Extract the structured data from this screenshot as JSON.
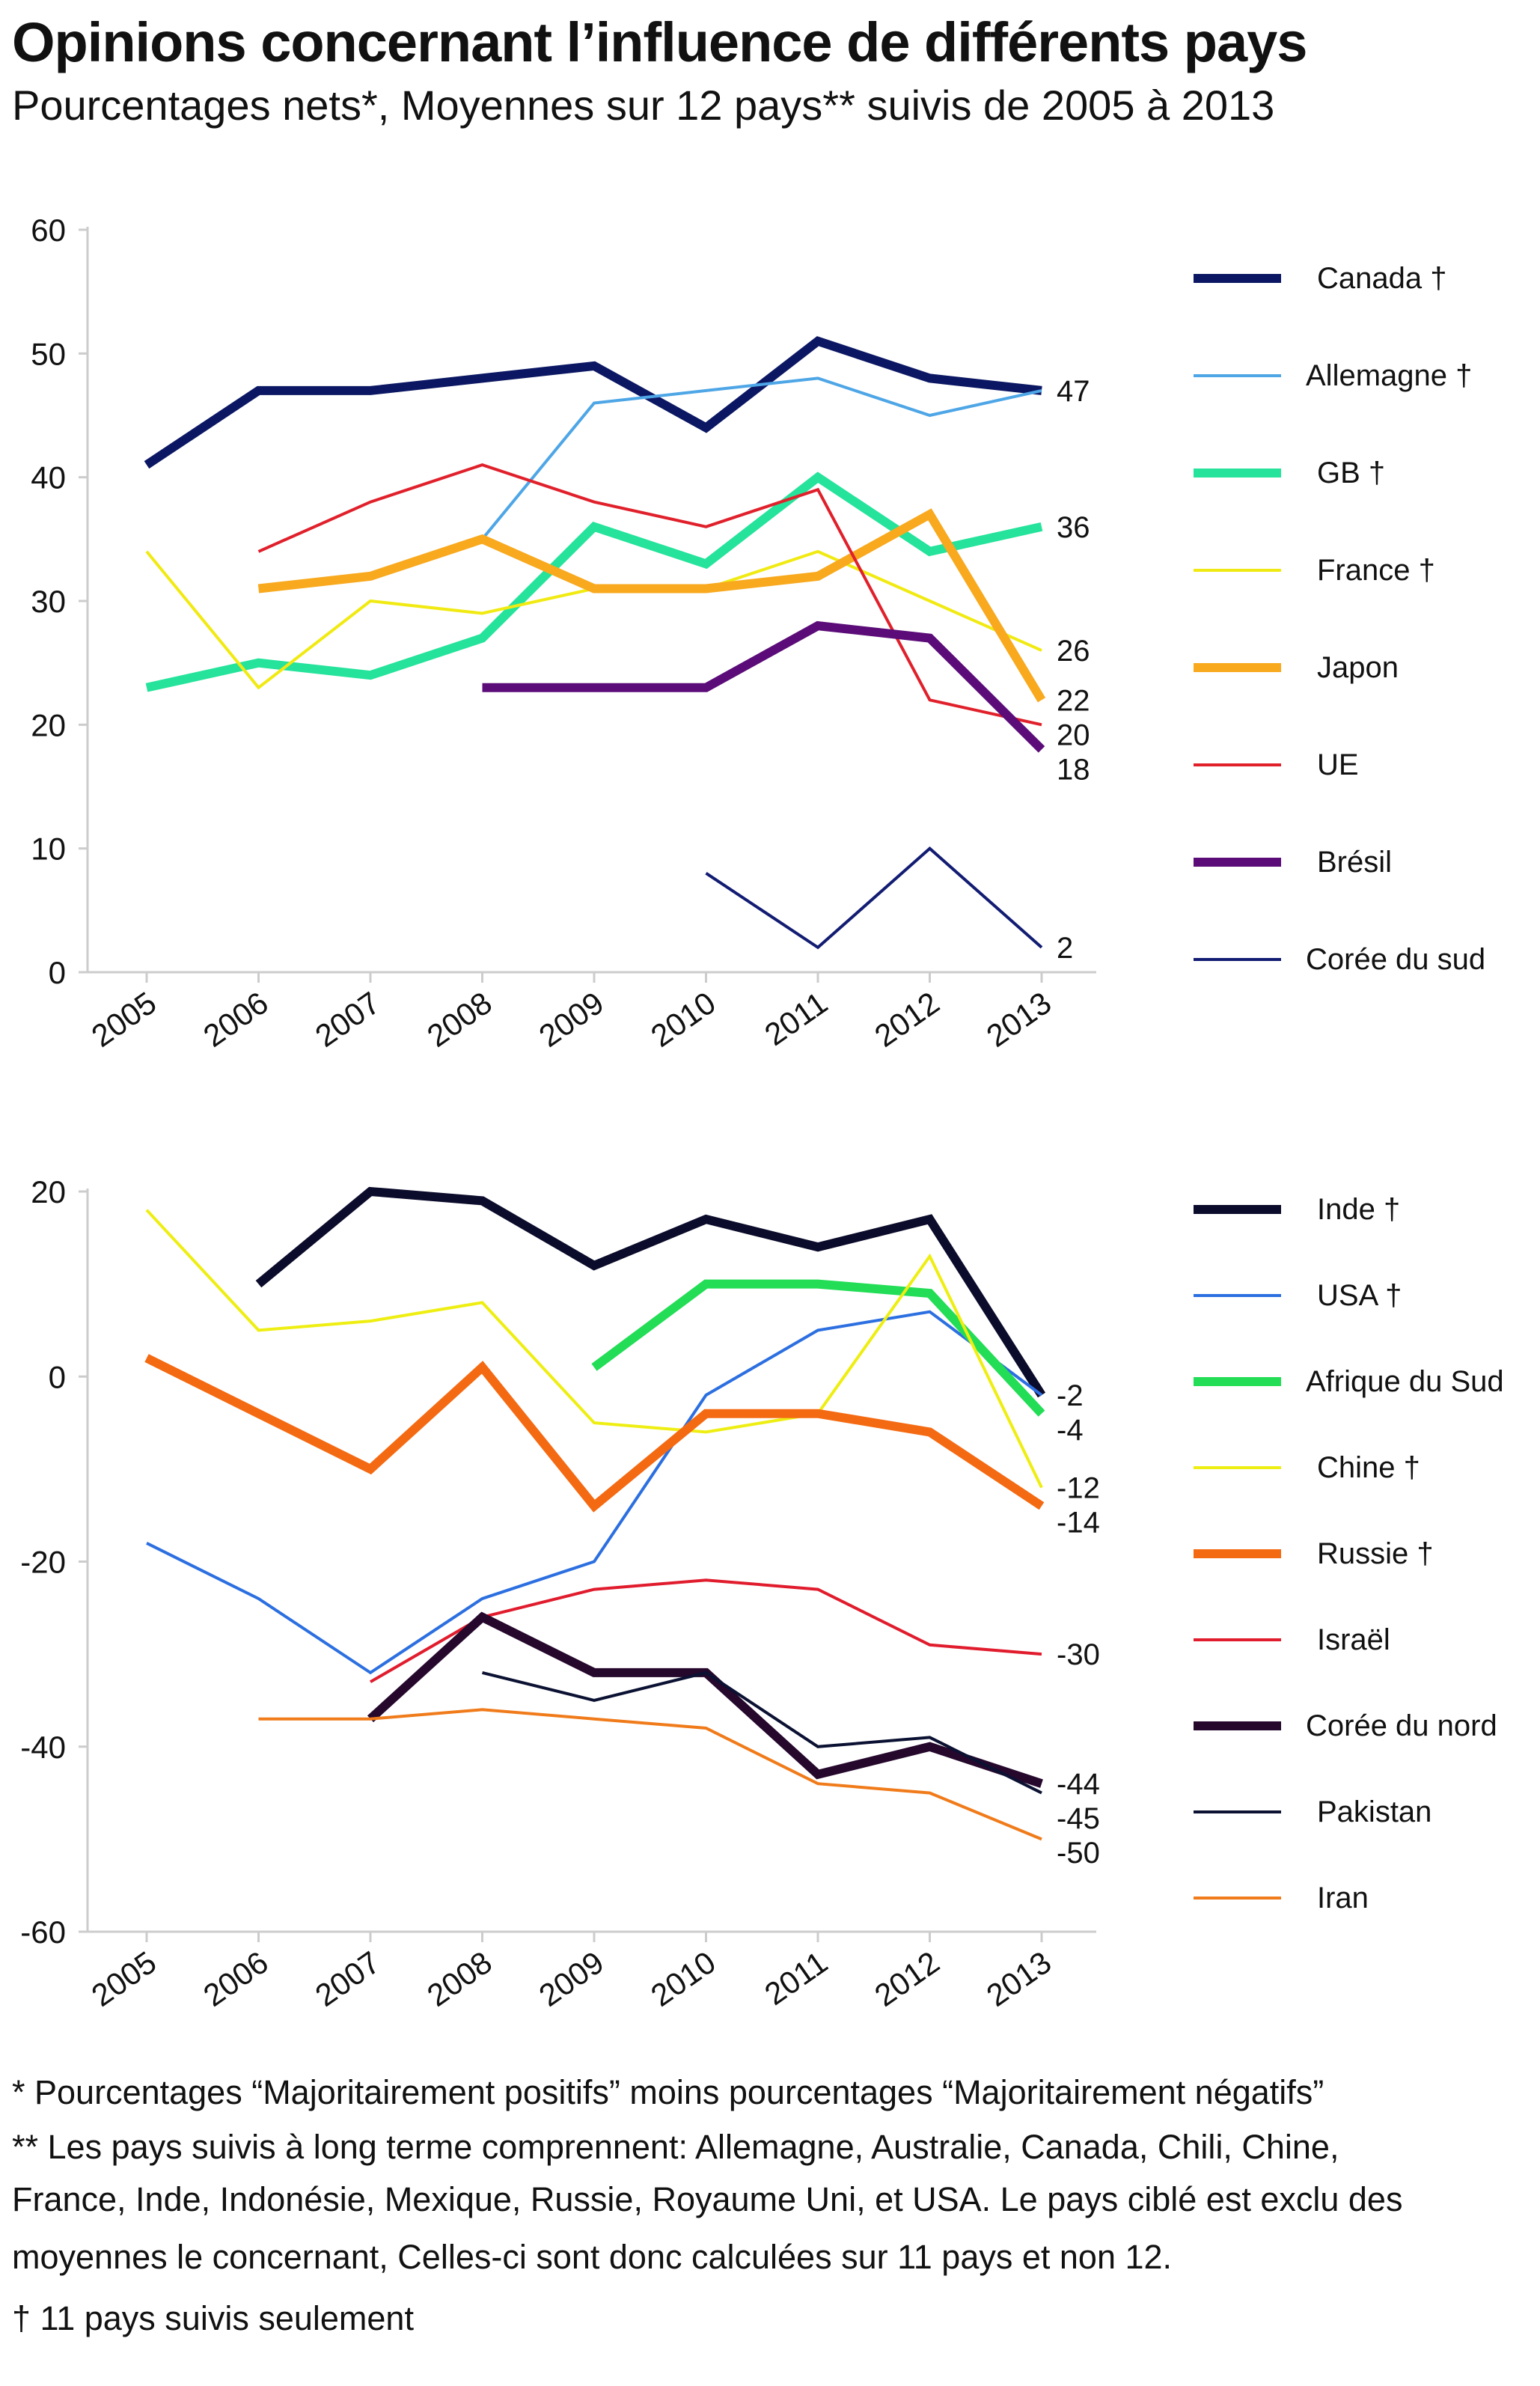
{
  "title": "Opinions concernant l’influence de différents pays",
  "subtitle": "Pourcentages nets*, Moyennes sur 12 pays** suivis de 2005 à 2013",
  "chart_data": [
    {
      "type": "line",
      "x": [
        2005,
        2006,
        2007,
        2008,
        2009,
        2010,
        2011,
        2012,
        2013
      ],
      "ylim": [
        0,
        60
      ],
      "yticks": [
        0,
        10,
        20,
        30,
        40,
        50,
        60
      ],
      "grid": false,
      "legend": "right",
      "series": [
        {
          "name": "Canada",
          "dagger": true,
          "color": "#0b1763",
          "thick": true,
          "values": [
            41,
            47,
            47,
            48,
            49,
            44,
            51,
            48,
            47
          ],
          "end_label": "47"
        },
        {
          "name": "Allemagne",
          "dagger": true,
          "color": "#4ea6e6",
          "thick": false,
          "values": [
            null,
            null,
            null,
            35,
            46,
            47,
            48,
            45,
            47
          ],
          "end_label": ""
        },
        {
          "name": "GB",
          "dagger": true,
          "color": "#25e39b",
          "thick": true,
          "values": [
            23,
            25,
            24,
            27,
            36,
            33,
            40,
            34,
            36
          ],
          "end_label": "36"
        },
        {
          "name": "France",
          "dagger": true,
          "color": "#f1ea12",
          "thick": false,
          "values": [
            34,
            23,
            30,
            29,
            31,
            31,
            34,
            30,
            26
          ],
          "end_label": "26"
        },
        {
          "name": "Japon",
          "dagger": false,
          "color": "#f8a91e",
          "thick": true,
          "values": [
            null,
            31,
            32,
            35,
            31,
            31,
            32,
            37,
            22
          ],
          "end_label": "22"
        },
        {
          "name": "UE",
          "dagger": false,
          "color": "#e0202b",
          "thick": false,
          "values": [
            null,
            34,
            38,
            41,
            38,
            36,
            39,
            22,
            20
          ],
          "end_label": "20"
        },
        {
          "name": "Brésil",
          "dagger": false,
          "color": "#5b0c78",
          "thick": true,
          "values": [
            null,
            null,
            null,
            23,
            23,
            23,
            28,
            27,
            18
          ],
          "end_label": "18"
        },
        {
          "name": "Corée du sud",
          "dagger": false,
          "color": "#121c72",
          "thick": false,
          "values": [
            null,
            null,
            null,
            null,
            null,
            8,
            2,
            10,
            2
          ],
          "end_label": "2"
        }
      ]
    },
    {
      "type": "line",
      "x": [
        2005,
        2006,
        2007,
        2008,
        2009,
        2010,
        2011,
        2012,
        2013
      ],
      "ylim": [
        -60,
        20
      ],
      "yticks": [
        -60,
        -40,
        -20,
        0,
        20
      ],
      "grid": false,
      "legend": "right",
      "series": [
        {
          "name": "Inde",
          "dagger": true,
          "color": "#0b0b2b",
          "thick": true,
          "values": [
            null,
            10,
            20,
            19,
            12,
            17,
            14,
            17,
            -2
          ],
          "end_label": "-2"
        },
        {
          "name": "USA",
          "dagger": true,
          "color": "#2c6fe0",
          "thick": false,
          "values": [
            -18,
            -24,
            -32,
            -24,
            -20,
            -2,
            5,
            7,
            -2
          ],
          "end_label": ""
        },
        {
          "name": "Afrique du Sud",
          "dagger": false,
          "color": "#22dd55",
          "thick": true,
          "values": [
            null,
            null,
            null,
            null,
            1,
            10,
            10,
            9,
            -4
          ],
          "end_label": "-4"
        },
        {
          "name": "Chine",
          "dagger": true,
          "color": "#eeee12",
          "thick": false,
          "values": [
            18,
            5,
            6,
            8,
            -5,
            -6,
            -4,
            13,
            -12
          ],
          "end_label": "-12"
        },
        {
          "name": "Russie",
          "dagger": true,
          "color": "#f46a12",
          "thick": true,
          "values": [
            2,
            -4,
            -10,
            1,
            -14,
            -4,
            -4,
            -6,
            -14
          ],
          "end_label": "-14"
        },
        {
          "name": "Israël",
          "dagger": false,
          "color": "#e01c2d",
          "thick": false,
          "values": [
            null,
            null,
            -33,
            -26,
            -23,
            -22,
            -23,
            -29,
            -30
          ],
          "end_label": "-30"
        },
        {
          "name": "Corée du nord",
          "dagger": false,
          "color": "#25082c",
          "thick": true,
          "values": [
            null,
            null,
            -37,
            -26,
            -32,
            -32,
            -43,
            -40,
            -44
          ],
          "end_label": "-44"
        },
        {
          "name": "Pakistan",
          "dagger": false,
          "color": "#0b1132",
          "thick": false,
          "values": [
            null,
            null,
            null,
            -32,
            -35,
            -32,
            -40,
            -39,
            -45
          ],
          "end_label": "-45"
        },
        {
          "name": "Iran",
          "dagger": false,
          "color": "#f07b1a",
          "thick": false,
          "values": [
            null,
            -37,
            -37,
            -36,
            -37,
            -38,
            -44,
            -45,
            -50
          ],
          "end_label": "-50"
        }
      ]
    }
  ],
  "footnotes": [
    "* Pourcentages “Majoritairement positifs” moins pourcentages “Majoritairement négatifs”",
    "** Les pays suivis à long terme comprennent: Allemagne, Australie, Canada, Chili, Chine,",
    "France, Inde, Indonésie, Mexique, Russie, Royaume Uni, et USA. Le pays ciblé est exclu des",
    "moyennes le concernant, Celles-ci sont donc calculées sur 11 pays et non 12.",
    "† 11 pays suivis seulement"
  ]
}
